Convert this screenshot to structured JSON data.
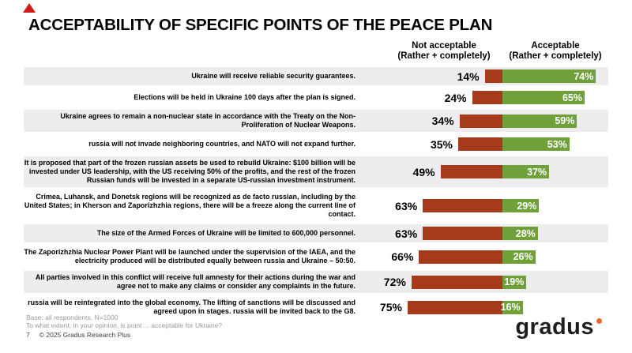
{
  "slide": {
    "title": "ACCEPTABILITY OF SPECIFIC POINTS OF THE PEACE PLAN"
  },
  "columns": {
    "not_acceptable": {
      "line1": "Not acceptable",
      "line2": "(Rather + completely)"
    },
    "acceptable": {
      "line1": "Acceptable",
      "line2": "(Rather + completely)"
    }
  },
  "chart_data": {
    "type": "bar",
    "orientation": "horizontal",
    "title": "ACCEPTABILITY OF SPECIFIC POINTS OF THE PEACE PLAN",
    "unit": "%",
    "legend_position": "top-as-column-headers",
    "grid": false,
    "value_labels": "not-acceptable left of bar in black, acceptable inside bar in white",
    "categories": [
      "Ukraine will receive reliable security guarantees.",
      "Elections will be held in Ukraine 100 days after the plan is signed.",
      "Ukraine agrees to remain a non-nuclear state in accordance with the Treaty on the Non-Proliferation of Nuclear Weapons.",
      "russia will not invade neighboring countries, and NATO will not expand further.",
      "It is proposed that part of the frozen russian assets be used to rebuild Ukraine: $100 billion will be invested under US leadership, with the US receiving 50% of the profits, and the rest of the frozen Russian funds will be invested in a separate US-russian investment instrument.",
      "Crimea, Luhansk, and Donetsk regions will be recognized as de facto russian, including by the United States; in Kherson and Zaporizhzhia regions, there will be a freeze along the current line of contact.",
      "The size of the Armed Forces of Ukraine will be limited to 600,000 personnel.",
      "The Zaporizhzhia Nuclear Power Plant will be launched under the supervision of the IAEA, and the electricity produced will be distributed equally between russia and Ukraine – 50:50.",
      "All parties involved in this conflict will receive full amnesty for their actions during the war and agree not to make any claims or consider any complaints in the future.",
      "russia will be reintegrated into the global economy. The lifting of sanctions will be discussed and agreed upon in stages. russia will be invited back to the G8."
    ],
    "series": [
      {
        "name": "Not acceptable (Rather + completely)",
        "color": "#a63b1c",
        "values": [
          14,
          24,
          34,
          35,
          49,
          63,
          63,
          66,
          72,
          75
        ]
      },
      {
        "name": "Acceptable (Rather + completely)",
        "color": "#6fa03a",
        "values": [
          74,
          65,
          59,
          53,
          37,
          29,
          28,
          26,
          19,
          16
        ]
      }
    ]
  },
  "footer": {
    "base_note": "Base: all respondents, N=1000",
    "question_note": "To what extent, in your opinion, is point ... acceptable for Ukraine?",
    "page_number": "7",
    "copyright": "© 2025 Gradus Research Plus",
    "logo_text": "gradus"
  },
  "colors": {
    "bar_not_acceptable": "#a63b1c",
    "bar_acceptable": "#6fa03a",
    "row_band": "#ededed",
    "brand_triangle": "#d01a18",
    "logo_dot": "#e8682f",
    "note_gray": "#9a9a9a"
  }
}
